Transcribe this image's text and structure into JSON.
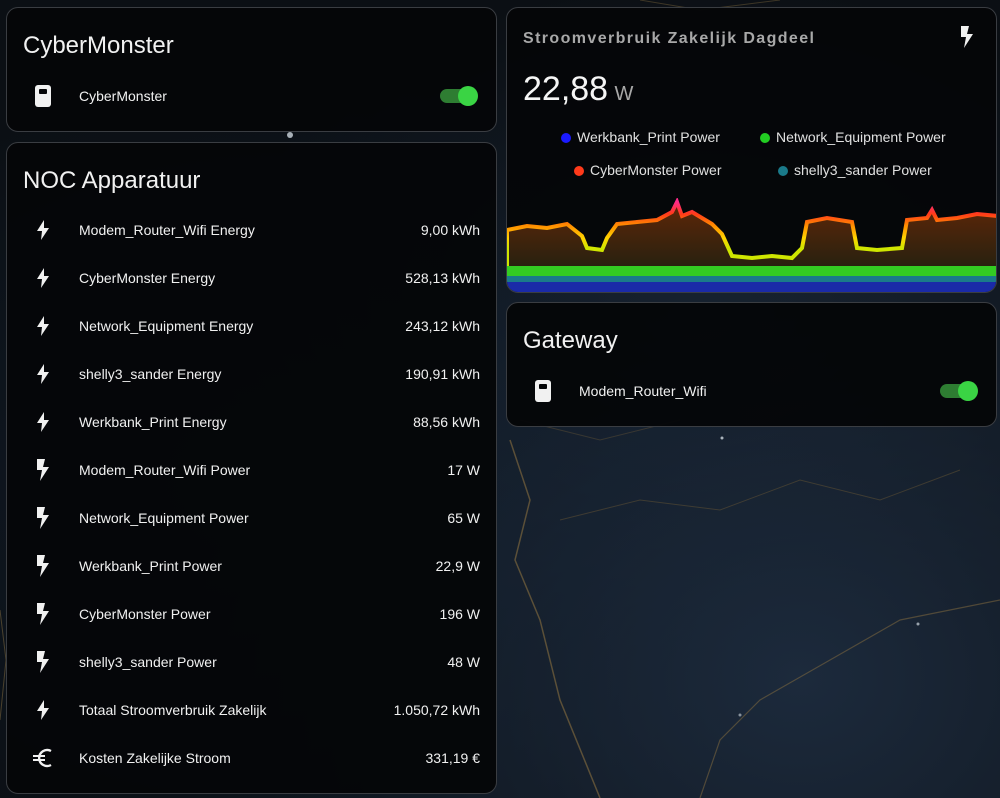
{
  "colors": {
    "toggle_on": "#3ad444",
    "legend_werkbank": "#1a1aff",
    "legend_network": "#22cc22",
    "legend_cybermonster": "#ff3a1a",
    "legend_shelly": "#1a7a8a"
  },
  "cybermonster_card": {
    "title": "CyberMonster",
    "row": {
      "icon": "power-socket-icon",
      "label": "CyberMonster",
      "state": "on"
    }
  },
  "noc_card": {
    "title": "NOC Apparatuur",
    "rows": [
      {
        "icon": "flash-icon",
        "label": "Modem_Router_Wifi Energy",
        "value": "9,00 kWh"
      },
      {
        "icon": "flash-icon",
        "label": "CyberMonster Energy",
        "value": "528,13 kWh"
      },
      {
        "icon": "flash-icon",
        "label": "Network_Equipment Energy",
        "value": "243,12 kWh"
      },
      {
        "icon": "flash-icon",
        "label": "shelly3_sander Energy",
        "value": "190,91 kWh"
      },
      {
        "icon": "flash-icon",
        "label": "Werkbank_Print Energy",
        "value": "88,56 kWh"
      },
      {
        "icon": "power-bolt-icon",
        "label": "Modem_Router_Wifi Power",
        "value": "17 W"
      },
      {
        "icon": "power-bolt-icon",
        "label": "Network_Equipment Power",
        "value": "65 W"
      },
      {
        "icon": "power-bolt-icon",
        "label": "Werkbank_Print Power",
        "value": "22,9 W"
      },
      {
        "icon": "power-bolt-icon",
        "label": "CyberMonster Power",
        "value": "196 W"
      },
      {
        "icon": "power-bolt-icon",
        "label": "shelly3_sander Power",
        "value": "48 W"
      },
      {
        "icon": "flash-icon",
        "label": "Totaal Stroomverbruik Zakelijk",
        "value": "1.050,72 kWh"
      },
      {
        "icon": "euro-icon",
        "label": "Kosten Zakelijke Stroom",
        "value": "331,19 €"
      }
    ]
  },
  "graph_card": {
    "title": "Stroomverbruik Zakelijk Dagdeel",
    "icon": "power-bolt-icon",
    "value": "22,88",
    "unit": "W",
    "legend": [
      "Werkbank_Print Power",
      "Network_Equipment Power",
      "CyberMonster Power",
      "shelly3_sander Power"
    ]
  },
  "gateway_card": {
    "title": "Gateway",
    "row": {
      "icon": "power-socket-icon",
      "label": "Modem_Router_Wifi",
      "state": "on"
    }
  }
}
